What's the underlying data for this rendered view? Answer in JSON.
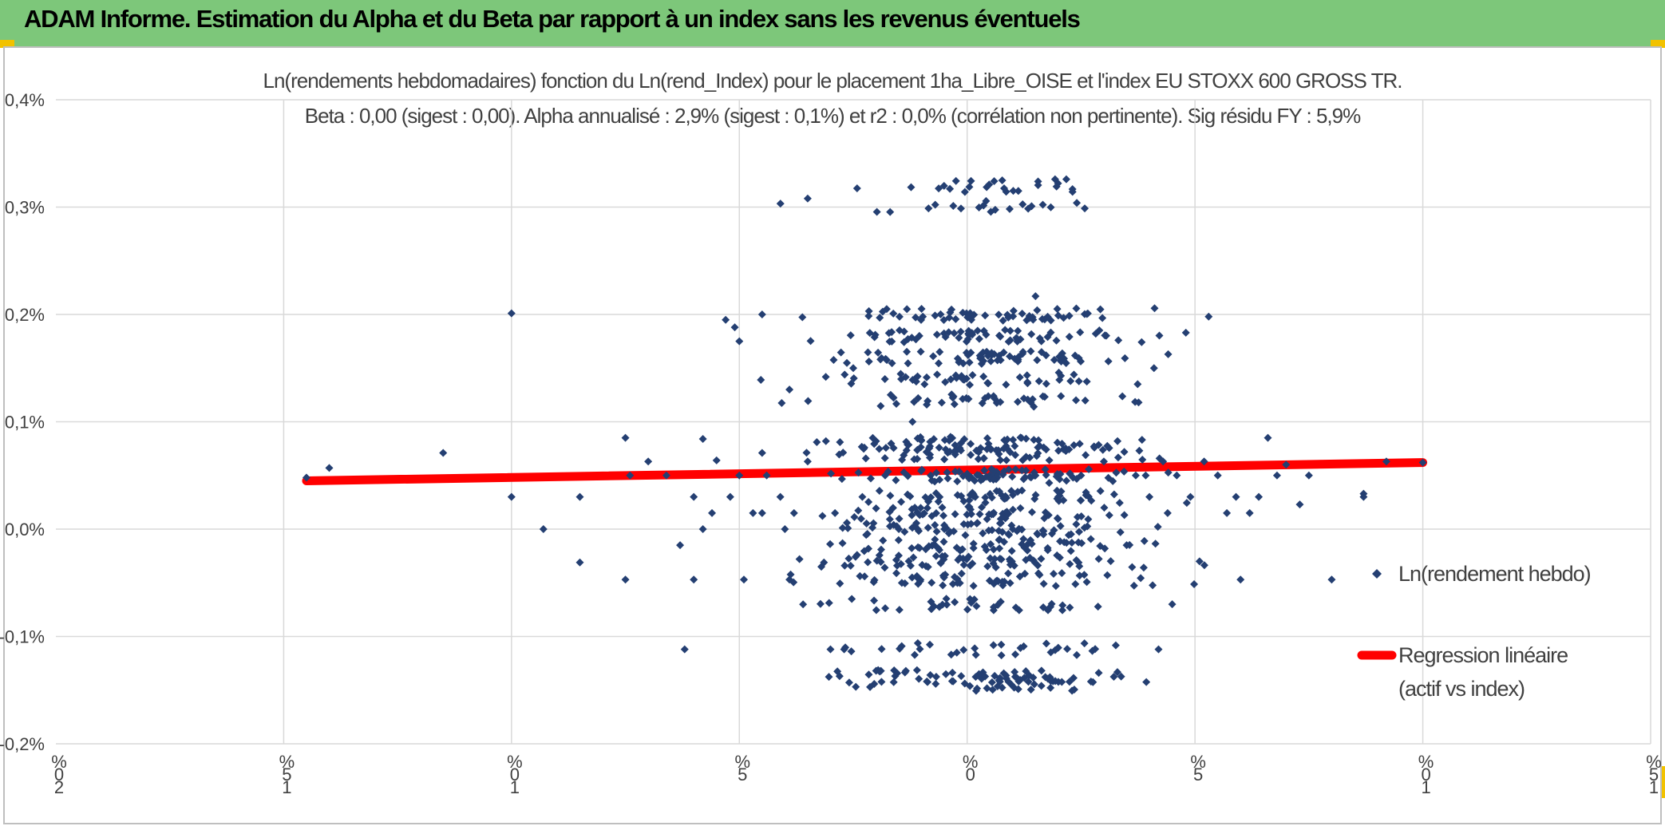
{
  "banner": {
    "title": "ADAM Informe. Estimation du Alpha et du Beta par rapport à un index sans les revenus éventuels"
  },
  "colors": {
    "banner": "#7dc77a",
    "points": "#243f72",
    "regression": "#ff0000",
    "grid": "#d9d9d9"
  },
  "chart_data": {
    "type": "scatter",
    "title_line1": "Ln(rendements hebdomadaires) fonction du Ln(rend_Index) pour le placement 1ha_Libre_OISE et l'index EU STOXX 600 GROSS TR.",
    "title_line2": "Beta : 0,00 (sigest : 0,00). Alpha annualisé : 2,9% (sigest : 0,1%) et r2 : 0,0% (corrélation non pertinente). Sig résidu FY : 5,9%",
    "ylim": [
      -0.2,
      0.4
    ],
    "xlim": [
      -20,
      15
    ],
    "y_ticks": [
      {
        "value": 0.4,
        "label": "0,4%"
      },
      {
        "value": 0.3,
        "label": "0,3%"
      },
      {
        "value": 0.2,
        "label": "0,2%"
      },
      {
        "value": 0.1,
        "label": "0,1%"
      },
      {
        "value": 0.0,
        "label": "0,0%"
      },
      {
        "value": -0.1,
        "label": "-0,1%"
      },
      {
        "value": -0.2,
        "label": "-0,2%"
      }
    ],
    "x_ticks": [
      {
        "value": -20,
        "label": "%02"
      },
      {
        "value": -15,
        "label": "%51"
      },
      {
        "value": -10,
        "label": "%01"
      },
      {
        "value": -5,
        "label": "%5"
      },
      {
        "value": 0,
        "label": "%0"
      },
      {
        "value": 5,
        "label": "%5"
      },
      {
        "value": 10,
        "label": "%01"
      },
      {
        "value": 15,
        "label": "%51"
      }
    ],
    "series": [
      {
        "name": "Ln(rendement hebdo)",
        "kind": "scatter",
        "points": [
          [
            -14.5,
            0.048
          ],
          [
            -14.0,
            0.057
          ],
          [
            -11.5,
            0.071
          ],
          [
            -10.0,
            0.201
          ],
          [
            -10.0,
            0.03
          ],
          [
            -9.3,
            0.0
          ],
          [
            -8.5,
            -0.031
          ],
          [
            -8.5,
            0.03
          ],
          [
            -7.5,
            0.085
          ],
          [
            -7.5,
            -0.047
          ],
          [
            -7.4,
            0.05
          ],
          [
            -7.0,
            0.063
          ],
          [
            -6.6,
            0.05
          ],
          [
            -6.3,
            -0.015
          ],
          [
            -6.2,
            -0.112
          ],
          [
            -6.0,
            0.03
          ],
          [
            -6.0,
            -0.047
          ],
          [
            -5.8,
            0.0
          ],
          [
            -5.8,
            0.084
          ],
          [
            -5.6,
            0.015
          ],
          [
            -5.5,
            0.064
          ],
          [
            -5.3,
            0.195
          ],
          [
            -5.2,
            0.03
          ],
          [
            -5.1,
            0.188
          ],
          [
            -5.0,
            0.175
          ],
          [
            -5.0,
            0.05
          ],
          [
            -4.9,
            -0.047
          ],
          [
            -4.7,
            0.015
          ],
          [
            -4.5,
            0.071
          ],
          [
            -4.5,
            0.015
          ],
          [
            -4.5,
            0.2
          ],
          [
            -4.4,
            0.05
          ],
          [
            -4.1,
            0.03
          ],
          [
            -4.0,
            0.0
          ],
          [
            -3.9,
            0.13
          ],
          [
            -3.9,
            -0.047
          ],
          [
            -3.8,
            0.015
          ],
          [
            -3.5,
            0.063
          ],
          [
            -3.5,
            0.308
          ],
          [
            -3.3,
            0.081
          ],
          [
            -3.2,
            -0.035
          ],
          [
            -3.1,
            0.082
          ],
          [
            -3.0,
            -0.112
          ],
          [
            -2.9,
            0.015
          ],
          [
            -2.8,
            -0.137
          ],
          [
            -2.7,
            -0.112
          ],
          [
            -2.5,
            0.15
          ],
          [
            -2.3,
            0.03
          ],
          [
            -2.0,
            0.082
          ],
          [
            -1.8,
            0.05
          ],
          [
            -1.5,
            0.0
          ],
          [
            -1.2,
            0.1
          ],
          [
            -0.8,
            0.05
          ],
          [
            -0.5,
            0.0
          ],
          [
            0.0,
            0.05
          ],
          [
            0.5,
            0.05
          ],
          [
            1.0,
            0.0
          ],
          [
            1.5,
            0.05
          ],
          [
            2.0,
            0.03
          ],
          [
            2.5,
            0.05
          ],
          [
            3.0,
            0.063
          ],
          [
            3.3,
            0.082
          ],
          [
            3.5,
            -0.015
          ],
          [
            3.7,
            0.05
          ],
          [
            4.0,
            0.03
          ],
          [
            4.1,
            0.15
          ],
          [
            4.2,
            -0.112
          ],
          [
            4.3,
            0.063
          ],
          [
            4.4,
            0.015
          ],
          [
            4.5,
            -0.07
          ],
          [
            4.6,
            0.05
          ],
          [
            4.8,
            0.183
          ],
          [
            4.9,
            0.03
          ],
          [
            5.1,
            -0.03
          ],
          [
            5.2,
            0.063
          ],
          [
            5.3,
            0.198
          ],
          [
            5.5,
            0.05
          ],
          [
            5.7,
            0.015
          ],
          [
            5.9,
            0.03
          ],
          [
            6.0,
            -0.047
          ],
          [
            6.2,
            0.015
          ],
          [
            6.4,
            0.03
          ],
          [
            6.6,
            0.085
          ],
          [
            6.8,
            0.05
          ],
          [
            7.0,
            0.06
          ],
          [
            7.3,
            0.023
          ],
          [
            7.5,
            0.05
          ],
          [
            8.0,
            -0.047
          ],
          [
            8.7,
            0.03
          ],
          [
            8.7,
            0.033
          ],
          [
            9.2,
            0.063
          ],
          [
            10.0,
            0.062
          ],
          [
            1.5,
            0.217
          ],
          [
            2.0,
            0.199
          ],
          [
            1.8,
            0.043
          ],
          [
            2.6,
            0.069
          ]
        ]
      },
      {
        "name": "Regression linéaire (actif vs index)",
        "kind": "line",
        "points": [
          [
            -14.5,
            0.045
          ],
          [
            10.0,
            0.062
          ]
        ]
      }
    ],
    "legend": [
      {
        "label": "Ln(rendement hebdo)"
      },
      {
        "label_line1": "Regression linéaire",
        "label_line2": "(actif vs index)"
      }
    ],
    "legend_position": "right",
    "grid": true
  }
}
